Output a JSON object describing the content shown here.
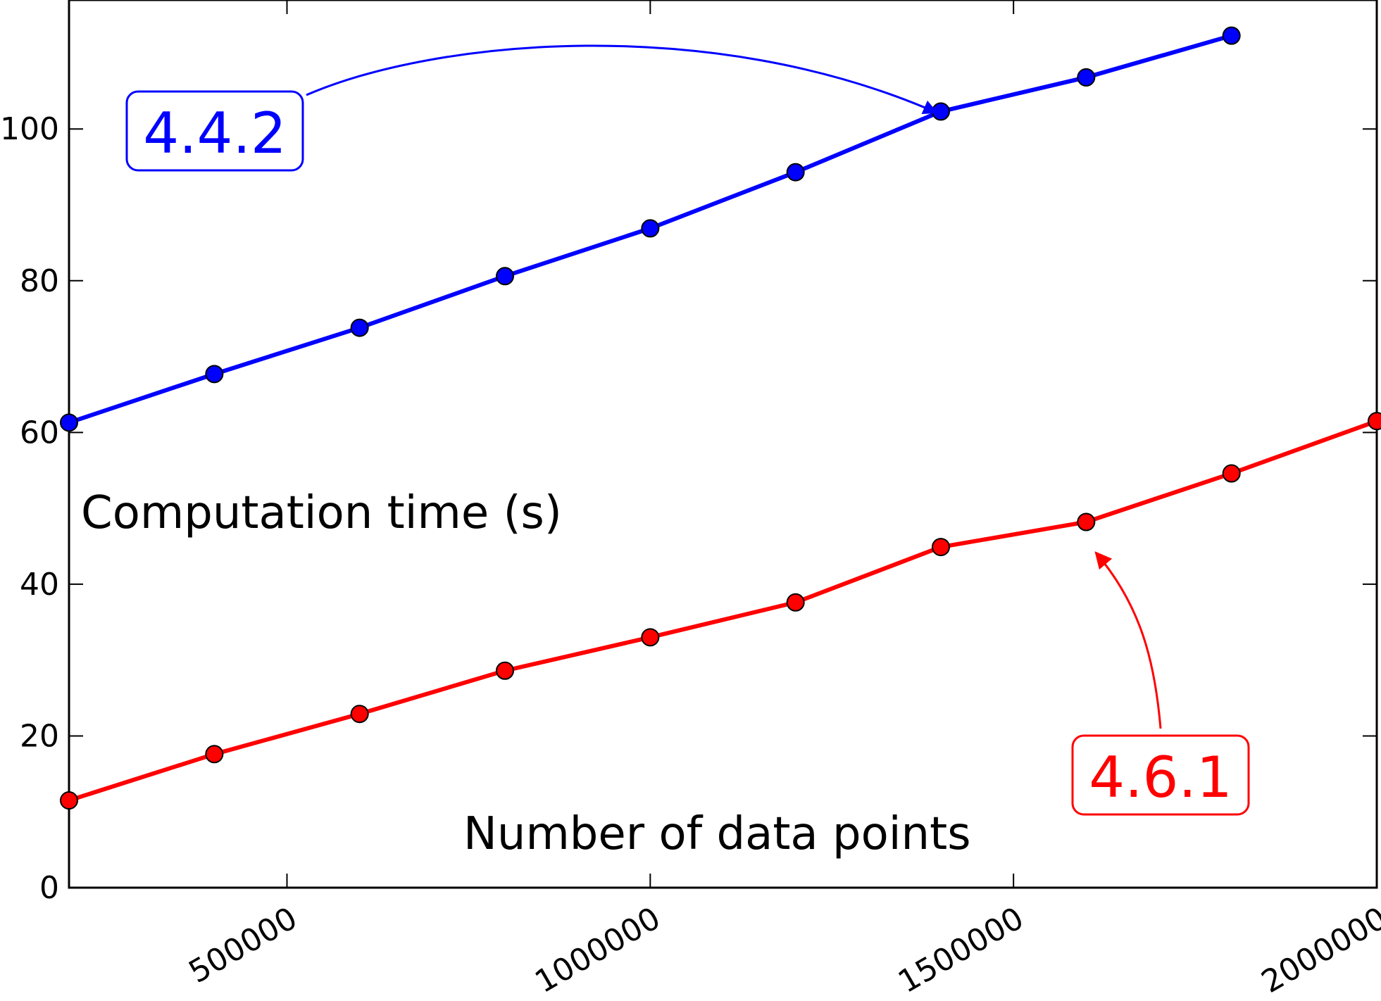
{
  "chart_data": {
    "type": "line",
    "xlabel": "Number of data points",
    "ylabel": "Computation time (s)",
    "xlim": [
      200000,
      2000000
    ],
    "ylim": [
      0,
      117
    ],
    "x_ticks": [
      500000,
      1000000,
      1500000,
      2000000
    ],
    "x_tick_labels": [
      "500000",
      "1000000",
      "1500000",
      "2000000"
    ],
    "y_ticks": [
      0,
      20,
      40,
      60,
      80,
      100
    ],
    "y_tick_labels": [
      "0",
      "20",
      "40",
      "60",
      "80",
      "100"
    ],
    "grid": false,
    "legend": "none",
    "x": [
      200000,
      400000,
      600000,
      800000,
      1000000,
      1200000,
      1400000,
      1600000,
      1800000,
      2000000
    ],
    "series": [
      {
        "color": "#0000ff",
        "values": [
          61.3,
          67.7,
          73.8,
          80.6,
          86.9,
          94.3,
          102.3,
          106.8,
          112.3,
          null
        ]
      },
      {
        "color": "#ff0000",
        "values": [
          11.5,
          17.6,
          22.9,
          28.6,
          33.0,
          37.6,
          44.9,
          48.2,
          54.6,
          61.5
        ]
      }
    ],
    "annotations": [
      {
        "text": "4.4.2",
        "color": "#0000ff",
        "target_series": 0,
        "target_x": 1400000
      },
      {
        "text": "4.6.1",
        "color": "#ff0000",
        "target_series": 1,
        "target_x": 1600000
      }
    ]
  }
}
